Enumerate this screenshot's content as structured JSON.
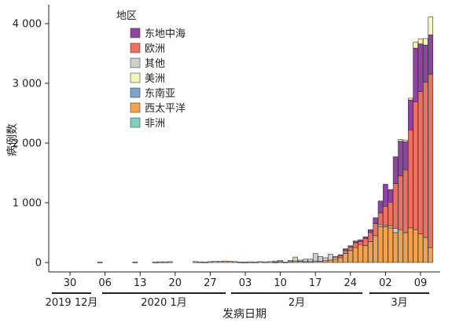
{
  "chart_data": {
    "type": "bar",
    "stacked": true,
    "ylabel": "病例数",
    "xlabel": "发病日期",
    "ylim": [
      0,
      4300
    ],
    "yticks": [
      {
        "value": 0,
        "label": "0"
      },
      {
        "value": 1000,
        "label": "1 000"
      },
      {
        "value": 2000,
        "label": "2 000"
      },
      {
        "value": 3000,
        "label": "3 000"
      },
      {
        "value": 4000,
        "label": "4 000"
      }
    ],
    "date_range": [
      "2019-12-30",
      "2020-03-10"
    ],
    "xticks": [
      {
        "date": "2019-12-30",
        "label": "30"
      },
      {
        "date": "2020-01-06",
        "label": "06"
      },
      {
        "date": "2020-01-13",
        "label": "13"
      },
      {
        "date": "2020-01-20",
        "label": "20"
      },
      {
        "date": "2020-01-27",
        "label": "27"
      },
      {
        "date": "2020-02-03",
        "label": "03"
      },
      {
        "date": "2020-02-10",
        "label": "10"
      },
      {
        "date": "2020-02-17",
        "label": "17"
      },
      {
        "date": "2020-02-24",
        "label": "24"
      },
      {
        "date": "2020-03-02",
        "label": "02"
      },
      {
        "date": "2020-03-09",
        "label": "09"
      }
    ],
    "month_groups": [
      {
        "label": "2019 12月",
        "from": "2019-12-30",
        "to": "2019-12-31"
      },
      {
        "label": "2020 1月",
        "from": "2020-01-01",
        "to": "2020-01-31"
      },
      {
        "label": "2月",
        "from": "2020-02-01",
        "to": "2020-02-29"
      },
      {
        "label": "3月",
        "from": "2020-03-01",
        "to": "2020-03-10"
      }
    ],
    "legend_title": "地区",
    "legend_position": "top-left",
    "series": [
      {
        "name": "东地中海",
        "color": "#8e44a0"
      },
      {
        "name": "欧洲",
        "color": "#ef6f61"
      },
      {
        "name": "其他",
        "color": "#cfcfcf"
      },
      {
        "name": "美洲",
        "color": "#f5f5b5"
      },
      {
        "name": "东南亚",
        "color": "#7ba6cc"
      },
      {
        "name": "西太平洋",
        "color": "#f2a24d"
      },
      {
        "name": "非洲",
        "color": "#7dd0c0"
      }
    ],
    "stack_order": [
      "西太平洋",
      "非洲",
      "东南亚",
      "其他",
      "欧洲",
      "东地中海",
      "美洲"
    ],
    "bars": [
      {
        "date": "2020-01-05",
        "values": {
          "西太平洋": 10
        }
      },
      {
        "date": "2020-01-12",
        "values": {
          "西太平洋": 10
        }
      },
      {
        "date": "2020-01-16",
        "values": {
          "西太平洋": 10
        }
      },
      {
        "date": "2020-01-17",
        "values": {
          "西太平洋": 12
        }
      },
      {
        "date": "2020-01-18",
        "values": {
          "西太平洋": 12
        }
      },
      {
        "date": "2020-01-19",
        "values": {
          "西太平洋": 14
        }
      },
      {
        "date": "2020-01-24",
        "values": {
          "西太平洋": 15
        }
      },
      {
        "date": "2020-01-25",
        "values": {
          "西太平洋": 12
        }
      },
      {
        "date": "2020-01-26",
        "values": {
          "西太平洋": 10
        }
      },
      {
        "date": "2020-01-27",
        "values": {
          "西太平洋": 15
        }
      },
      {
        "date": "2020-01-28",
        "values": {
          "西太平洋": 18
        }
      },
      {
        "date": "2020-01-29",
        "values": {
          "西太平洋": 20
        }
      },
      {
        "date": "2020-01-30",
        "values": {
          "西太平洋": 25
        }
      },
      {
        "date": "2020-01-31",
        "values": {
          "西太平洋": 20
        }
      },
      {
        "date": "2020-02-01",
        "values": {
          "西太平洋": 15
        }
      },
      {
        "date": "2020-02-02",
        "values": {
          "西太平洋": 10
        }
      },
      {
        "date": "2020-02-03",
        "values": {
          "西太平洋": 8
        }
      },
      {
        "date": "2020-02-04",
        "values": {
          "西太平洋": 12
        }
      },
      {
        "date": "2020-02-05",
        "values": {
          "西太平洋": 10
        }
      },
      {
        "date": "2020-02-06",
        "values": {
          "西太平洋": 15
        }
      },
      {
        "date": "2020-02-07",
        "values": {
          "西太平洋": 12
        }
      },
      {
        "date": "2020-02-08",
        "values": {
          "西太平洋": 15
        }
      },
      {
        "date": "2020-02-09",
        "values": {
          "西太平洋": 10,
          "其他": 15
        }
      },
      {
        "date": "2020-02-10",
        "values": {
          "西太平洋": 15,
          "其他": 20
        }
      },
      {
        "date": "2020-02-11",
        "values": {
          "西太平洋": 10
        }
      },
      {
        "date": "2020-02-12",
        "values": {
          "西太平洋": 15,
          "其他": 20
        }
      },
      {
        "date": "2020-02-13",
        "values": {
          "西太平洋": 25,
          "其他": 65
        }
      },
      {
        "date": "2020-02-14",
        "values": {
          "西太平洋": 20,
          "其他": 20
        }
      },
      {
        "date": "2020-02-15",
        "values": {
          "西太平洋": 15,
          "其他": 40
        }
      },
      {
        "date": "2020-02-16",
        "values": {
          "西太平洋": 15,
          "其他": 40
        }
      },
      {
        "date": "2020-02-17",
        "values": {
          "西太平洋": 25,
          "其他": 125
        }
      },
      {
        "date": "2020-02-18",
        "values": {
          "西太平洋": 20,
          "其他": 80
        }
      },
      {
        "date": "2020-02-19",
        "values": {
          "西太平洋": 30,
          "其他": 50
        }
      },
      {
        "date": "2020-02-20",
        "values": {
          "西太平洋": 40,
          "其他": 100
        }
      },
      {
        "date": "2020-02-21",
        "values": {
          "西太平洋": 50,
          "其他": 30,
          "欧洲": 20
        }
      },
      {
        "date": "2020-02-22",
        "values": {
          "西太平洋": 80,
          "欧洲": 40,
          "东地中海": 10
        }
      },
      {
        "date": "2020-02-23",
        "values": {
          "西太平洋": 150,
          "欧洲": 50,
          "东地中海": 30
        }
      },
      {
        "date": "2020-02-24",
        "values": {
          "西太平洋": 200,
          "欧洲": 60,
          "东地中海": 20
        }
      },
      {
        "date": "2020-02-25",
        "values": {
          "西太平洋": 250,
          "欧洲": 80,
          "东地中海": 30
        }
      },
      {
        "date": "2020-02-26",
        "values": {
          "西太平洋": 300,
          "欧洲": 50,
          "东地中海": 30
        }
      },
      {
        "date": "2020-02-27",
        "values": {
          "西太平洋": 280,
          "欧洲": 120,
          "东地中海": 30
        }
      },
      {
        "date": "2020-02-28",
        "values": {
          "西太平洋": 350,
          "欧洲": 150,
          "东地中海": 50
        }
      },
      {
        "date": "2020-02-29",
        "values": {
          "西太平洋": 450,
          "欧洲": 200,
          "东地中海": 100
        }
      },
      {
        "date": "2020-03-01",
        "values": {
          "西太平洋": 600,
          "欧洲": 200,
          "东地中海": 200,
          "其他": 30
        }
      },
      {
        "date": "2020-03-02",
        "values": {
          "西太平洋": 600,
          "欧洲": 320,
          "东地中海": 370,
          "其他": 20
        }
      },
      {
        "date": "2020-03-03",
        "values": {
          "西太平洋": 580,
          "欧洲": 400,
          "东地中海": 210,
          "其他": 30
        }
      },
      {
        "date": "2020-03-04",
        "values": {
          "西太平洋": 500,
          "欧洲": 750,
          "东地中海": 450,
          "其他": 70
        }
      },
      {
        "date": "2020-03-05",
        "values": {
          "西太平洋": 550,
          "欧洲": 900,
          "东地中海": 580,
          "美洲": 30
        }
      },
      {
        "date": "2020-03-06",
        "values": {
          "西太平洋": 500,
          "欧洲": 1050,
          "东地中海": 470,
          "美洲": 30
        }
      },
      {
        "date": "2020-03-07",
        "values": {
          "西太平洋": 580,
          "欧洲": 1640,
          "东地中海": 500,
          "美洲": 30
        }
      },
      {
        "date": "2020-03-08",
        "values": {
          "西太平洋": 550,
          "欧洲": 2140,
          "东地中海": 900,
          "美洲": 100
        }
      },
      {
        "date": "2020-03-09",
        "values": {
          "西太平洋": 480,
          "欧洲": 2380,
          "东地中海": 800,
          "美洲": 80
        }
      },
      {
        "date": "2020-03-10",
        "values": {
          "西太平洋": 420,
          "欧洲": 2600,
          "东地中海": 620,
          "美洲": 110
        }
      },
      {
        "date": "2020-03-11",
        "values": {
          "西太平洋": 250,
          "欧洲": 2900,
          "东地中海": 660,
          "美洲": 300
        }
      }
    ]
  }
}
